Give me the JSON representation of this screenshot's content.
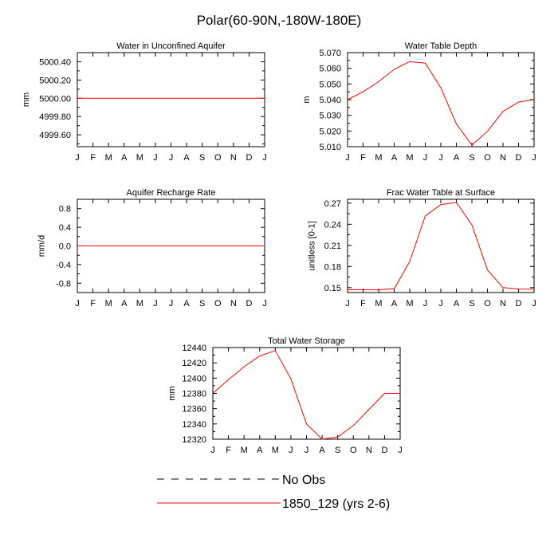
{
  "figure": {
    "title": "Polar(60-90N,-180W-180E)",
    "legend": [
      {
        "label": "No Obs",
        "color": "#000000",
        "style": "dashed"
      },
      {
        "label": "1850_129 (yrs 2-6)",
        "color": "#ff0000",
        "style": "solid"
      }
    ]
  },
  "chart_data": [
    {
      "type": "line",
      "title": "Water in Unconfined Aquifer",
      "ylabel": "mm",
      "categories": [
        "J",
        "F",
        "M",
        "A",
        "M",
        "J",
        "J",
        "A",
        "S",
        "O",
        "N",
        "D",
        "J"
      ],
      "yticks": [
        4999.6,
        4999.8,
        5000.0,
        5000.2,
        5000.4
      ],
      "ytick_labels": [
        "4999.60",
        "4999.80",
        "5000.00",
        "5000.20",
        "5000.40"
      ],
      "ylim": [
        4999.47,
        5000.5
      ],
      "series": [
        {
          "color": "#ff0000",
          "values": [
            5000,
            5000,
            5000,
            5000,
            5000,
            5000,
            5000,
            5000,
            5000,
            5000,
            5000,
            5000,
            5000
          ]
        }
      ]
    },
    {
      "type": "line",
      "title": "Water Table Depth",
      "ylabel": "m",
      "categories": [
        "J",
        "F",
        "M",
        "A",
        "M",
        "J",
        "J",
        "A",
        "S",
        "O",
        "N",
        "D",
        "J"
      ],
      "yticks": [
        5.01,
        5.02,
        5.03,
        5.04,
        5.05,
        5.06,
        5.07
      ],
      "ytick_labels": [
        "5.010",
        "5.020",
        "5.030",
        "5.040",
        "5.050",
        "5.060",
        "5.070"
      ],
      "ylim": [
        5.01,
        5.07
      ],
      "series": [
        {
          "color": "#ff0000",
          "values": [
            5.04,
            5.045,
            5.0515,
            5.0593,
            5.0643,
            5.0633,
            5.0475,
            5.0245,
            5.011,
            5.0198,
            5.0325,
            5.0385,
            5.04
          ]
        }
      ]
    },
    {
      "type": "line",
      "title": "Aquifer Recharge Rate",
      "ylabel": "mm/d",
      "categories": [
        "J",
        "F",
        "M",
        "A",
        "M",
        "J",
        "J",
        "A",
        "S",
        "O",
        "N",
        "D",
        "J"
      ],
      "yticks": [
        -0.8,
        -0.4,
        0.0,
        0.4,
        0.8
      ],
      "ytick_labels": [
        "-0.8",
        "-0.4",
        "0.0",
        "0.4",
        "0.8"
      ],
      "ylim": [
        -1.0,
        1.0
      ],
      "series": [
        {
          "color": "#ff0000",
          "values": [
            0,
            0,
            0,
            0,
            0,
            0,
            0,
            0,
            0,
            0,
            0,
            0,
            0
          ]
        }
      ]
    },
    {
      "type": "line",
      "title": "Frac Water Table at Surface",
      "ylabel": "unitless [0-1]",
      "categories": [
        "J",
        "F",
        "M",
        "A",
        "M",
        "J",
        "J",
        "A",
        "S",
        "O",
        "N",
        "D",
        "J"
      ],
      "yticks": [
        0.15,
        0.18,
        0.21,
        0.24,
        0.27
      ],
      "ytick_labels": [
        "0.15",
        "0.18",
        "0.21",
        "0.24",
        "0.27"
      ],
      "ylim": [
        0.143,
        0.2755
      ],
      "series": [
        {
          "color": "#ff0000",
          "values": [
            0.147,
            0.147,
            0.1468,
            0.1485,
            0.187,
            0.252,
            0.268,
            0.271,
            0.239,
            0.175,
            0.15,
            0.148,
            0.1478
          ]
        }
      ]
    },
    {
      "type": "line",
      "title": "Total Water Storage",
      "ylabel": "mm",
      "categories": [
        "J",
        "F",
        "M",
        "A",
        "M",
        "J",
        "J",
        "A",
        "S",
        "O",
        "N",
        "D",
        "J"
      ],
      "yticks": [
        12320,
        12340,
        12360,
        12380,
        12400,
        12420,
        12440
      ],
      "ytick_labels": [
        "12320",
        "12340",
        "12360",
        "12380",
        "12400",
        "12420",
        "12440"
      ],
      "ylim": [
        12320,
        12440
      ],
      "series": [
        {
          "color": "#ff0000",
          "values": [
            12380,
            12398,
            12415,
            12429,
            12436,
            12399,
            12340,
            12320,
            12323,
            12338,
            12359,
            12380,
            12380
          ]
        }
      ]
    }
  ]
}
